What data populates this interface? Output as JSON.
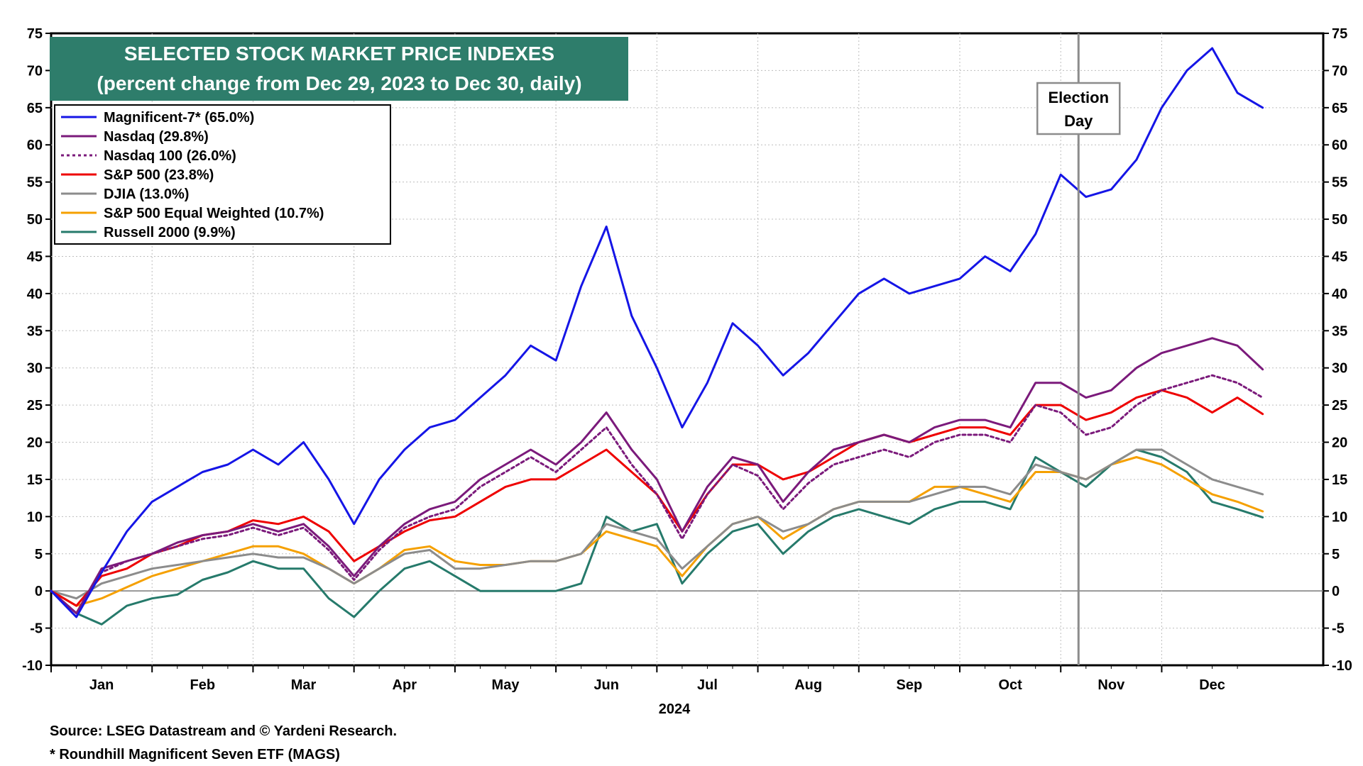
{
  "chart_data": {
    "type": "line",
    "title": "SELECTED STOCK MARKET PRICE INDEXES",
    "subtitle": "(percent change from Dec 29, 2023 to Dec 30, daily)",
    "xlabel": "2024",
    "ylabel": "",
    "ylim": [
      -10,
      75
    ],
    "yticks": [
      75,
      70,
      65,
      60,
      55,
      50,
      45,
      40,
      35,
      30,
      25,
      20,
      15,
      10,
      5,
      0,
      -5,
      -10
    ],
    "months": [
      "Jan",
      "Feb",
      "Mar",
      "Apr",
      "May",
      "Jun",
      "Jul",
      "Aug",
      "Sep",
      "Oct",
      "Nov",
      "Dec"
    ],
    "grid": true,
    "legend_position": "top-left",
    "annotation": {
      "line1": "Election",
      "line2": "Day",
      "date_fraction_of_year": 0.848
    },
    "source": "Source: LSEG Datastream and © Yardeni Research.",
    "footnote": "* Roundhill Magnificent Seven ETF (MAGS)",
    "x_dates": [
      0,
      0.25,
      0.5,
      0.75,
      1,
      1.25,
      1.5,
      1.75,
      2,
      2.25,
      2.5,
      2.75,
      3,
      3.25,
      3.5,
      3.75,
      4,
      4.25,
      4.5,
      4.75,
      5,
      5.25,
      5.5,
      5.75,
      6,
      6.25,
      6.5,
      6.75,
      7,
      7.25,
      7.5,
      7.75,
      8,
      8.25,
      8.5,
      8.75,
      9,
      9.25,
      9.5,
      9.75,
      10,
      10.25,
      10.5,
      10.75,
      11,
      11.25,
      11.5,
      11.75,
      12
    ],
    "series": [
      {
        "name": "Magnificent-7*",
        "legend": "Magnificent-7* (65.0%)",
        "color": "#1515e6",
        "dash": "",
        "values": [
          0,
          -3.5,
          2.5,
          8,
          12,
          14,
          16,
          17,
          19,
          17,
          20,
          15,
          9,
          15,
          19,
          22,
          23,
          26,
          29,
          33,
          31,
          41,
          49,
          37,
          30,
          22,
          28,
          36,
          33,
          29,
          32,
          36,
          40,
          42,
          40,
          41,
          42,
          45,
          43,
          48,
          56,
          53,
          54,
          58,
          65,
          70,
          73,
          67,
          65
        ]
      },
      {
        "name": "Nasdaq",
        "legend": "Nasdaq (29.8%)",
        "color": "#7b1a7b",
        "dash": "",
        "values": [
          0,
          -3,
          3,
          4,
          5,
          6.5,
          7.5,
          8,
          9,
          8,
          9,
          6,
          2,
          6,
          9,
          11,
          12,
          15,
          17,
          19,
          17,
          20,
          24,
          19,
          15,
          8,
          14,
          18,
          17,
          12,
          16,
          19,
          20,
          21,
          20,
          22,
          23,
          23,
          22,
          28,
          28,
          26,
          27,
          30,
          32,
          33,
          34,
          33,
          29.8
        ]
      },
      {
        "name": "Nasdaq 100",
        "legend": "Nasdaq 100 (26.0%)",
        "color": "#7b1a7b",
        "dash": "4,4",
        "values": [
          0,
          -3,
          2.5,
          4,
          5,
          6,
          7,
          7.5,
          8.5,
          7.5,
          8.5,
          5.5,
          1.5,
          5.5,
          8.5,
          10,
          11,
          14,
          16,
          18,
          16,
          19,
          22,
          17,
          13,
          7,
          13,
          17,
          15.5,
          11,
          14.5,
          17,
          18,
          19,
          18,
          20,
          21,
          21,
          20,
          25,
          24,
          21,
          22,
          25,
          27,
          28,
          29,
          28,
          26
        ]
      },
      {
        "name": "S&P 500",
        "legend": "S&P 500 (23.8%)",
        "color": "#ee0000",
        "dash": "",
        "values": [
          0,
          -2,
          2,
          3,
          5,
          6,
          7.5,
          8,
          9.5,
          9,
          10,
          8,
          4,
          6,
          8,
          9.5,
          10,
          12,
          14,
          15,
          15,
          17,
          19,
          16,
          13,
          8,
          13,
          17,
          17,
          15,
          16,
          18,
          20,
          21,
          20,
          21,
          22,
          22,
          21,
          25,
          25,
          23,
          24,
          26,
          27,
          26,
          24,
          26,
          23.8
        ]
      },
      {
        "name": "DJIA",
        "legend": "DJIA (13.0%)",
        "color": "#8c8c8c",
        "dash": "",
        "values": [
          0,
          -1,
          1,
          2,
          3,
          3.5,
          4,
          4.5,
          5,
          4.5,
          4.5,
          3,
          1,
          3,
          5,
          5.5,
          3,
          3,
          3.5,
          4,
          4,
          5,
          9,
          8,
          7,
          3,
          6,
          9,
          10,
          8,
          9,
          11,
          12,
          12,
          12,
          13,
          14,
          14,
          13,
          17,
          16,
          15,
          17,
          19,
          19,
          17,
          15,
          14,
          13
        ]
      },
      {
        "name": "S&P 500 Equal Weighted",
        "legend": "S&P 500 Equal Weighted (10.7%)",
        "color": "#f5a000",
        "dash": "",
        "values": [
          0,
          -2,
          -1,
          0.5,
          2,
          3,
          4,
          5,
          6,
          6,
          5,
          3,
          1,
          3,
          5.5,
          6,
          4,
          3.5,
          3.5,
          4,
          4,
          5,
          8,
          7,
          6,
          2,
          6,
          9,
          10,
          7,
          9,
          11,
          12,
          12,
          12,
          14,
          14,
          13,
          12,
          16,
          16,
          15,
          17,
          18,
          17,
          15,
          13,
          12,
          10.7
        ]
      },
      {
        "name": "Russell 2000",
        "legend": "Russell 2000 (9.9%)",
        "color": "#267a6b",
        "dash": "",
        "values": [
          0,
          -3,
          -4.5,
          -2,
          -1,
          -0.5,
          1.5,
          2.5,
          4,
          3,
          3,
          -1,
          -3.5,
          0,
          3,
          4,
          2,
          0,
          0,
          0,
          0,
          1,
          10,
          8,
          9,
          1,
          5,
          8,
          9,
          5,
          8,
          10,
          11,
          10,
          9,
          11,
          12,
          12,
          11,
          18,
          16,
          14,
          17,
          19,
          18,
          16,
          12,
          11,
          9.9
        ]
      }
    ]
  }
}
